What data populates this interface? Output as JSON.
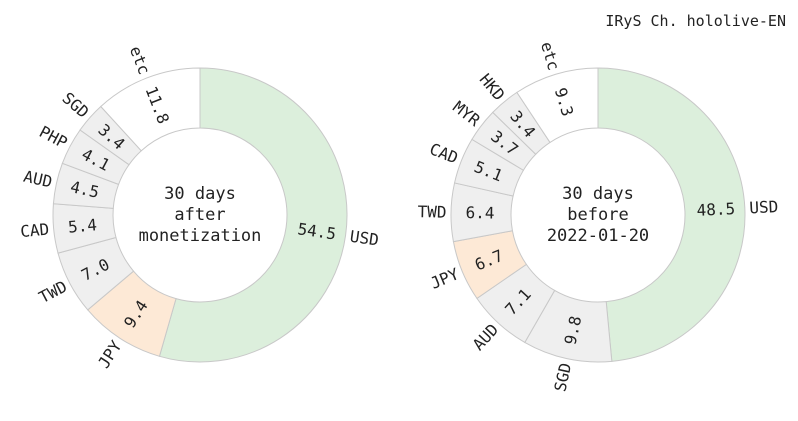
{
  "figure_title": "IRyS Ch. hololive-EN",
  "colors": {
    "USD": "#dcefdc",
    "JPY": "#fde9d6",
    "etc": "#ffffff",
    "other": "#efefef",
    "edge": "#c8c8c8",
    "text": "#222222"
  },
  "chart_data": [
    {
      "type": "pie",
      "donut": true,
      "center_label": [
        "30 days",
        "after",
        "monetization"
      ],
      "slices": [
        {
          "label": "USD",
          "value": 54.5,
          "value_label": "54.5",
          "color_key": "USD"
        },
        {
          "label": "JPY",
          "value": 9.4,
          "value_label": "9.4",
          "color_key": "JPY"
        },
        {
          "label": "TWD",
          "value": 7.0,
          "value_label": "7.0",
          "color_key": "other"
        },
        {
          "label": "CAD",
          "value": 5.4,
          "value_label": "5.4",
          "color_key": "other"
        },
        {
          "label": "AUD",
          "value": 4.5,
          "value_label": "4.5",
          "color_key": "other"
        },
        {
          "label": "PHP",
          "value": 4.1,
          "value_label": "4.1",
          "color_key": "other"
        },
        {
          "label": "SGD",
          "value": 3.4,
          "value_label": "3.4",
          "color_key": "other"
        },
        {
          "label": "etc",
          "value": 11.8,
          "value_label": "11.8",
          "color_key": "etc"
        }
      ]
    },
    {
      "type": "pie",
      "donut": true,
      "center_label": [
        "30 days",
        "before",
        "2022-01-20"
      ],
      "slices": [
        {
          "label": "USD",
          "value": 48.5,
          "value_label": "48.5",
          "color_key": "USD"
        },
        {
          "label": "SGD",
          "value": 9.8,
          "value_label": "9.8",
          "color_key": "other"
        },
        {
          "label": "AUD",
          "value": 7.1,
          "value_label": "7.1",
          "color_key": "other"
        },
        {
          "label": "JPY",
          "value": 6.7,
          "value_label": "6.7",
          "color_key": "JPY"
        },
        {
          "label": "TWD",
          "value": 6.4,
          "value_label": "6.4",
          "color_key": "other"
        },
        {
          "label": "CAD",
          "value": 5.1,
          "value_label": "5.1",
          "color_key": "other"
        },
        {
          "label": "MYR",
          "value": 3.7,
          "value_label": "3.7",
          "color_key": "other"
        },
        {
          "label": "HKD",
          "value": 3.4,
          "value_label": "3.4",
          "color_key": "other"
        },
        {
          "label": "etc",
          "value": 9.3,
          "value_label": "9.3",
          "color_key": "etc"
        }
      ]
    }
  ]
}
